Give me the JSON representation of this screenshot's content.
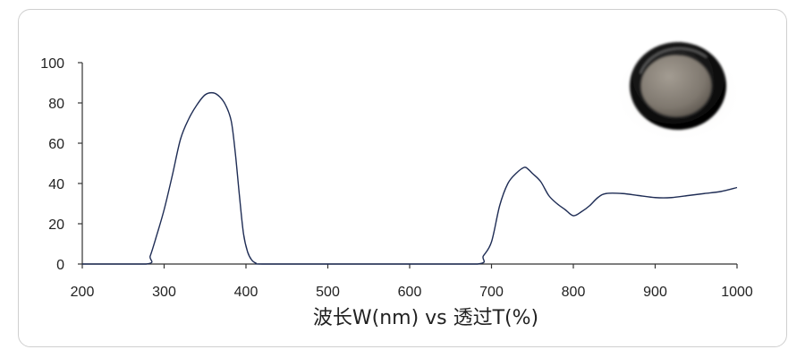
{
  "chart_data": {
    "type": "line",
    "title": "",
    "xlabel": "波长W(nm) vs 透过T(%)",
    "ylabel": "",
    "xlim": [
      200,
      1000
    ],
    "ylim": [
      0,
      100
    ],
    "x_ticks": [
      200,
      300,
      400,
      500,
      600,
      700,
      800,
      900,
      1000
    ],
    "y_ticks": [
      0,
      20,
      40,
      60,
      80,
      100
    ],
    "grid": false,
    "legend": "none",
    "line_color": "#1f2d55",
    "series": [
      {
        "x": [
          200,
          278,
          283,
          290,
          300,
          310,
          320,
          330,
          340,
          350,
          360,
          368,
          375,
          382,
          387,
          392,
          397,
          402,
          407,
          412,
          420,
          500,
          600,
          683,
          690,
          700,
          710,
          720,
          730,
          740,
          745,
          750,
          760,
          770,
          780,
          790,
          800,
          810,
          820,
          830,
          840,
          860,
          880,
          900,
          920,
          940,
          960,
          980,
          1000
        ],
        "y": [
          0,
          0,
          4,
          13,
          27,
          44,
          62,
          72,
          79,
          84,
          85,
          83,
          79,
          71,
          55,
          34,
          15,
          6,
          2,
          0.5,
          0,
          0,
          0,
          0,
          4,
          11,
          29,
          40,
          45,
          48,
          47,
          45,
          41,
          34,
          30,
          27,
          24,
          26,
          29,
          33,
          35,
          35,
          34,
          33,
          33,
          34,
          35,
          36,
          38
        ]
      }
    ]
  },
  "product_image": {
    "icon": "round-filter-lens-icon"
  }
}
